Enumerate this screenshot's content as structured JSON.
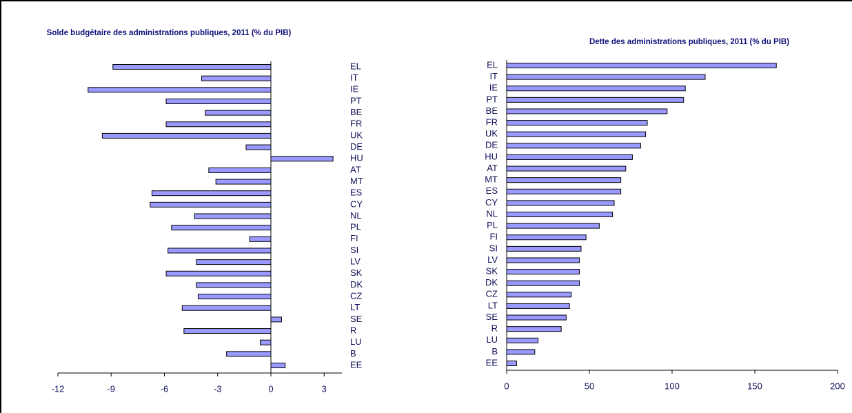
{
  "chart_data": [
    {
      "type": "bar",
      "orientation": "horizontal",
      "title": "Solde budgétaire des administrations publiques, 2011 (% du PIB)",
      "categories": [
        "EL",
        "IT",
        "IE",
        "PT",
        "BE",
        "FR",
        "UK",
        "DE",
        "HU",
        "AT",
        "MT",
        "ES",
        "CY",
        "NL",
        "PL",
        "FI",
        "SI",
        "LV",
        "SK",
        "DK",
        "CZ",
        "LT",
        "SE",
        "R",
        "LU",
        "B",
        "EE"
      ],
      "values": [
        -8.9,
        -3.9,
        -10.3,
        -5.9,
        -3.7,
        -5.9,
        -9.5,
        -1.4,
        3.5,
        -3.5,
        -3.1,
        -6.7,
        -6.8,
        -4.3,
        -5.6,
        -1.2,
        -5.8,
        -4.2,
        -5.9,
        -4.2,
        -4.1,
        -5.0,
        0.6,
        -4.9,
        -0.6,
        -2.5,
        0.8
      ],
      "color": "#9999ff",
      "xlim": [
        -12,
        4
      ],
      "xticks": [
        -12,
        -9,
        -6,
        -3,
        0,
        3
      ]
    },
    {
      "type": "bar",
      "orientation": "horizontal",
      "title": "Dette des administrations publiques, 2011 (% du PIB)",
      "categories": [
        "EL",
        "IT",
        "IE",
        "PT",
        "BE",
        "FR",
        "UK",
        "DE",
        "HU",
        "AT",
        "MT",
        "ES",
        "CY",
        "NL",
        "PL",
        "FI",
        "SI",
        "LV",
        "SK",
        "DK",
        "CZ",
        "LT",
        "SE",
        "R",
        "LU",
        "B",
        "EE"
      ],
      "values": [
        163,
        120,
        108,
        107,
        97,
        85,
        84,
        81,
        76,
        72,
        69,
        69,
        65,
        64,
        56,
        48,
        45,
        44,
        44,
        44,
        39,
        38,
        36,
        33,
        19,
        17,
        6
      ],
      "color": "#9999ff",
      "xlim": [
        0,
        200
      ],
      "xticks": [
        0,
        50,
        100,
        150,
        200
      ]
    }
  ]
}
